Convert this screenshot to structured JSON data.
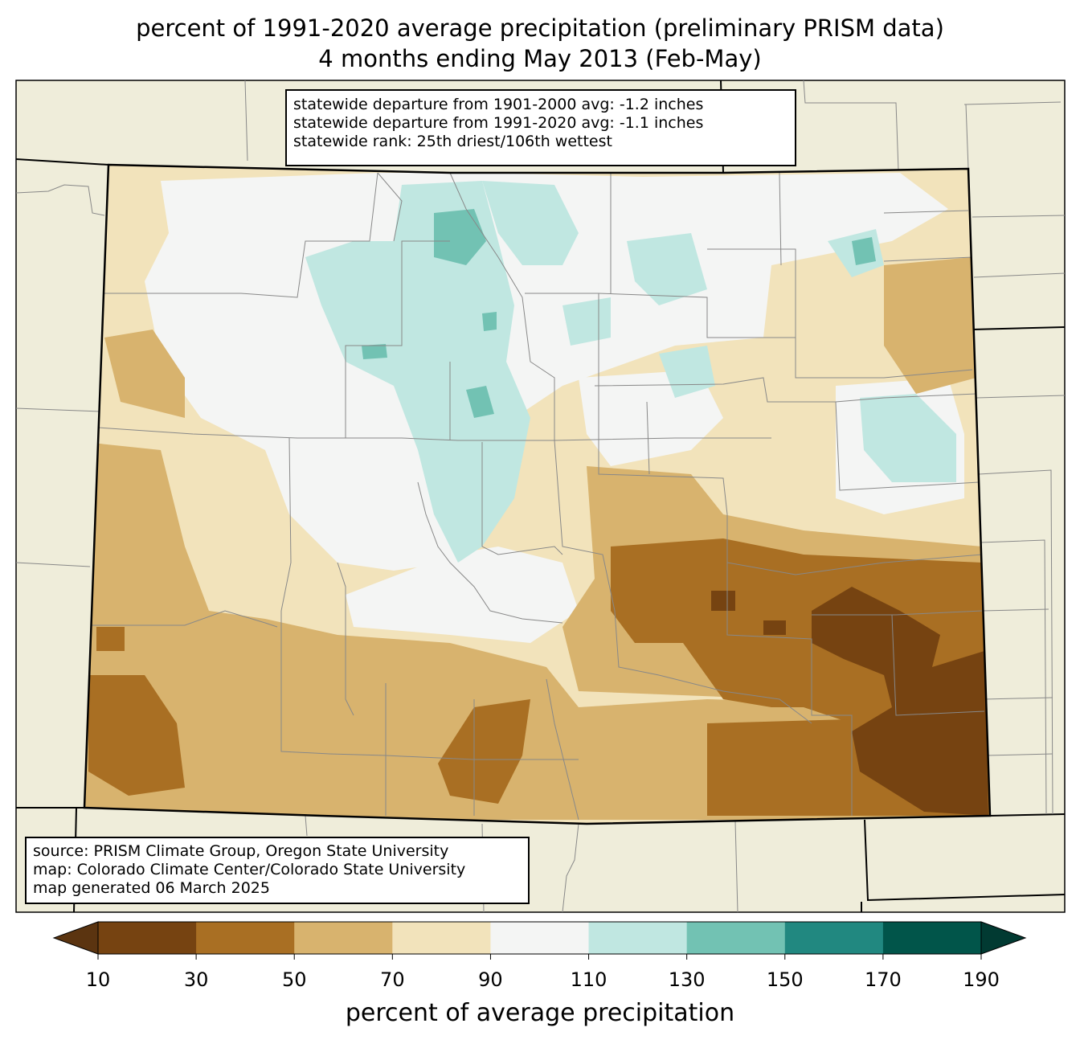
{
  "title": {
    "line1": "percent of 1991-2020 average precipitation (preliminary PRISM data)",
    "line2": "4 months ending May 2013 (Feb-May)"
  },
  "stats": {
    "line1": "statewide departure from 1901-2000 avg: -1.2 inches",
    "line2": "statewide departure from 1991-2020 avg: -1.1 inches",
    "line3": "statewide rank: 25th driest/106th wettest"
  },
  "source": {
    "line1": "source: PRISM Climate Group, Oregon State University",
    "line2": "map: Colorado Climate Center/Colorado State University",
    "line3": "map generated 06 March 2025"
  },
  "colorbar": {
    "label": "percent of average precipitation",
    "ticks": [
      "10",
      "30",
      "50",
      "70",
      "90",
      "110",
      "130",
      "150",
      "170",
      "190"
    ],
    "bin_colors": [
      "#764311",
      "#a96f23",
      "#d8b36e",
      "#f2e3bb",
      "#f4f5f4",
      "#c0e7e1",
      "#72c2b3",
      "#218880",
      "#01554a"
    ],
    "under_color": "#5b3410",
    "over_color": "#013a32"
  },
  "colors": {
    "background_land": "#efedda",
    "state_border": "#000000",
    "county_line": "#888888"
  }
}
